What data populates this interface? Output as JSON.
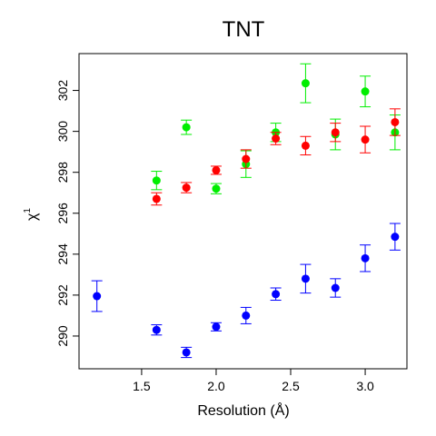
{
  "chart_data": {
    "type": "scatter",
    "title": "TNT",
    "xlabel": "Resolution (Å)",
    "ylabel": "χ",
    "ylabel_superscript": "1",
    "xlim": [
      1.08,
      3.28
    ],
    "ylim": [
      288.4,
      303.8
    ],
    "xticks": [
      1.5,
      2.0,
      2.5,
      3.0
    ],
    "xtick_labels": [
      "1.5",
      "2.0",
      "2.5",
      "3.0"
    ],
    "yticks": [
      290,
      292,
      294,
      296,
      298,
      300,
      302
    ],
    "ytick_labels": [
      "290",
      "292",
      "294",
      "296",
      "298",
      "300",
      "302"
    ],
    "grid": false,
    "legend": "none",
    "series": [
      {
        "color": "#0000ff",
        "points": [
          {
            "x": 1.2,
            "y": 291.95,
            "err": 0.75
          },
          {
            "x": 1.6,
            "y": 290.3,
            "err": 0.25
          },
          {
            "x": 1.8,
            "y": 289.2,
            "err": 0.25
          },
          {
            "x": 2.0,
            "y": 290.45,
            "err": 0.2
          },
          {
            "x": 2.2,
            "y": 291.0,
            "err": 0.4
          },
          {
            "x": 2.4,
            "y": 292.05,
            "err": 0.3
          },
          {
            "x": 2.6,
            "y": 292.8,
            "err": 0.7
          },
          {
            "x": 2.8,
            "y": 292.35,
            "err": 0.45
          },
          {
            "x": 3.0,
            "y": 293.8,
            "err": 0.65
          },
          {
            "x": 3.2,
            "y": 294.85,
            "err": 0.65
          }
        ]
      },
      {
        "color": "#00ee00",
        "points": [
          {
            "x": 1.6,
            "y": 297.6,
            "err": 0.45
          },
          {
            "x": 1.8,
            "y": 300.2,
            "err": 0.35
          },
          {
            "x": 2.0,
            "y": 297.2,
            "err": 0.25
          },
          {
            "x": 2.2,
            "y": 298.4,
            "err": 0.65
          },
          {
            "x": 2.4,
            "y": 299.95,
            "err": 0.45
          },
          {
            "x": 2.6,
            "y": 302.35,
            "err": 0.95
          },
          {
            "x": 2.8,
            "y": 299.85,
            "err": 0.75
          },
          {
            "x": 3.0,
            "y": 301.95,
            "err": 0.75
          },
          {
            "x": 3.2,
            "y": 299.95,
            "err": 0.85
          }
        ]
      },
      {
        "color": "#ff0000",
        "points": [
          {
            "x": 1.6,
            "y": 296.7,
            "err": 0.3
          },
          {
            "x": 1.8,
            "y": 297.25,
            "err": 0.25
          },
          {
            "x": 2.0,
            "y": 298.1,
            "err": 0.2
          },
          {
            "x": 2.2,
            "y": 298.65,
            "err": 0.45
          },
          {
            "x": 2.4,
            "y": 299.65,
            "err": 0.3
          },
          {
            "x": 2.6,
            "y": 299.3,
            "err": 0.45
          },
          {
            "x": 2.8,
            "y": 299.95,
            "err": 0.45
          },
          {
            "x": 3.0,
            "y": 299.6,
            "err": 0.65
          },
          {
            "x": 3.2,
            "y": 300.45,
            "err": 0.65
          }
        ]
      }
    ]
  }
}
